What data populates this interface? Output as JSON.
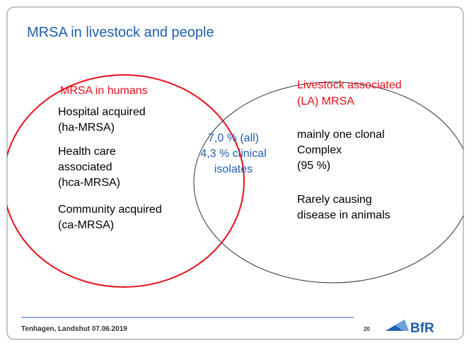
{
  "title": "MRSA in livestock and people",
  "left": {
    "heading": "MRSA in humans",
    "lines": [
      "Hospital acquired",
      "(ha-MRSA)",
      "Health care",
      "associated",
      "(hca-MRSA)",
      "Community acquired",
      "(ca-MRSA)"
    ]
  },
  "intersection": {
    "lines": [
      "7,0 % (all)",
      "4,3 % clinical",
      "isolates"
    ]
  },
  "right": {
    "heading": [
      "Livestock associated",
      "(LA) MRSA"
    ],
    "lines": [
      "mainly one clonal",
      "Complex",
      "(95 %)",
      "Rarely causing",
      "disease in animals"
    ]
  },
  "footer": {
    "text": "Tenhagen, Landshut 07.06.2019",
    "page": "20",
    "logo": "BfR"
  }
}
